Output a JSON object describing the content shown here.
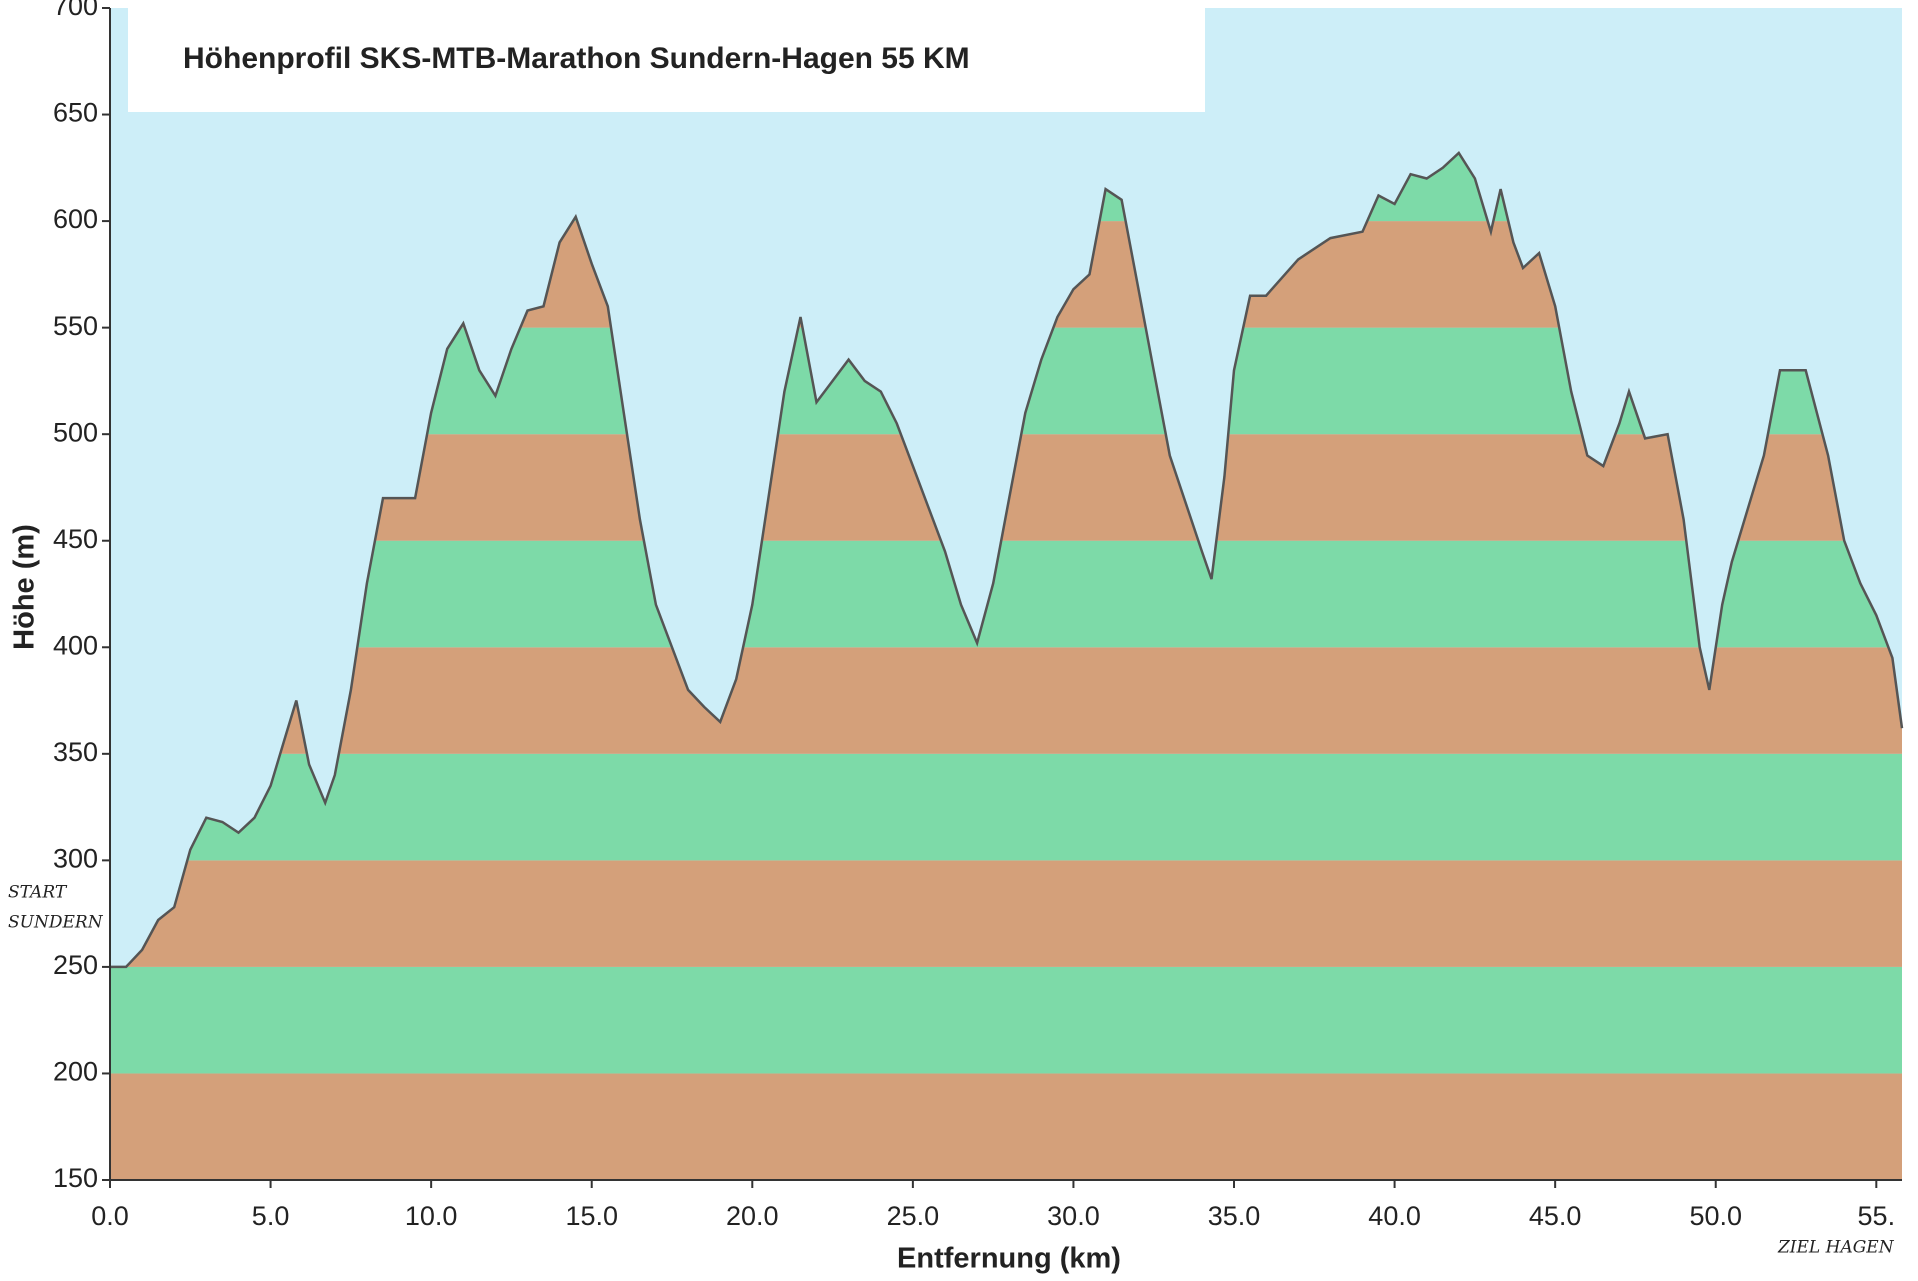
{
  "chart_data": {
    "type": "area",
    "title": "Höhenprofil SKS-MTB-Marathon Sundern-Hagen 55 KM",
    "xlabel": "Entfernung  (km)",
    "ylabel": "Höhe (m)",
    "annotations": [
      "START",
      "SUNDERN",
      "ZIEL HAGEN"
    ],
    "x": [
      0,
      0.5,
      1,
      1.5,
      2,
      2.5,
      3,
      3.5,
      4,
      4.5,
      5,
      5.5,
      5.8,
      6.2,
      6.7,
      7,
      7.5,
      8,
      8.5,
      9.5,
      10,
      10.5,
      11,
      11.5,
      12,
      12.5,
      13,
      13.5,
      14,
      14.5,
      15,
      15.5,
      16,
      16.5,
      17,
      18,
      18.5,
      19,
      19.5,
      20,
      20.5,
      21,
      21.5,
      22,
      22.5,
      23,
      23.5,
      24,
      24.5,
      25,
      26,
      26.5,
      27,
      27.5,
      28,
      28.5,
      29,
      29.5,
      30,
      30.5,
      31,
      31.5,
      32,
      32.5,
      33,
      34,
      34.3,
      34.7,
      35,
      35.5,
      36,
      37,
      38,
      39,
      39.5,
      40,
      40.5,
      41,
      41.5,
      42,
      42.5,
      43,
      43.3,
      43.7,
      44,
      44.5,
      45,
      45.5,
      46,
      46.5,
      47,
      47.3,
      47.8,
      48.5,
      49,
      49.5,
      49.8,
      50.2,
      50.5,
      51,
      51.5,
      52,
      52.8,
      53.5,
      54,
      54.5,
      55,
      55.5,
      55.8
    ],
    "values": [
      250,
      250,
      258,
      272,
      278,
      305,
      320,
      318,
      313,
      320,
      335,
      360,
      375,
      345,
      327,
      340,
      380,
      430,
      470,
      470,
      510,
      540,
      552,
      530,
      518,
      540,
      558,
      560,
      590,
      602,
      580,
      560,
      510,
      460,
      420,
      380,
      372,
      365,
      385,
      420,
      470,
      520,
      555,
      515,
      525,
      535,
      525,
      520,
      505,
      485,
      445,
      420,
      402,
      430,
      470,
      510,
      535,
      555,
      568,
      575,
      615,
      610,
      570,
      530,
      490,
      445,
      432,
      480,
      530,
      565,
      565,
      582,
      592,
      595,
      612,
      608,
      622,
      620,
      625,
      632,
      620,
      595,
      615,
      590,
      578,
      585,
      560,
      520,
      490,
      485,
      505,
      520,
      498,
      500,
      460,
      400,
      380,
      420,
      440,
      465,
      490,
      530,
      530,
      490,
      450,
      430,
      415,
      395,
      362
    ],
    "line_color": "#555555",
    "background_color": "#cdeef8",
    "band_colors": [
      "#d4a07a",
      "#7ddaa8"
    ],
    "xlim": [
      0,
      55.8
    ],
    "ylim": [
      150,
      700
    ],
    "xticks": [
      {
        "value": 0,
        "label": "0.0"
      },
      {
        "value": 5,
        "label": "5.0"
      },
      {
        "value": 10,
        "label": "10.0"
      },
      {
        "value": 15,
        "label": "15.0"
      },
      {
        "value": 20,
        "label": "20.0"
      },
      {
        "value": 25,
        "label": "25.0"
      },
      {
        "value": 30,
        "label": "30.0"
      },
      {
        "value": 35,
        "label": "35.0"
      },
      {
        "value": 40,
        "label": "40.0"
      },
      {
        "value": 45,
        "label": "45.0"
      },
      {
        "value": 50,
        "label": "50.0"
      },
      {
        "value": 55,
        "label": "55."
      }
    ],
    "yticks": [
      150,
      200,
      250,
      300,
      350,
      400,
      450,
      500,
      550,
      600,
      650,
      700
    ]
  }
}
